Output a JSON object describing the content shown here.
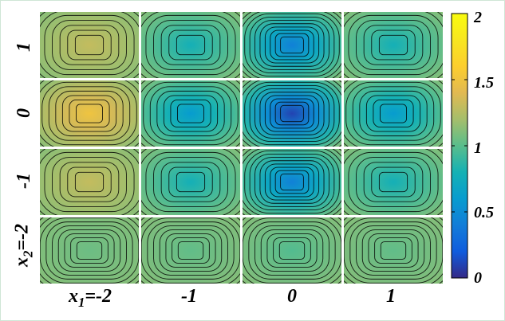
{
  "chart_data": {
    "type": "heatmap",
    "grid_columns": [
      "-2",
      "-1",
      "0",
      "1"
    ],
    "grid_rows_top_to_bottom": [
      "1",
      "0",
      "-1",
      "-2"
    ],
    "axis_label_x": {
      "variable": "x",
      "subscript": "1",
      "first_tick": "=-2",
      "ticks": [
        "-1",
        "0",
        "1"
      ]
    },
    "axis_label_y": {
      "variable": "x",
      "subscript": "2",
      "first_tick": "=-2",
      "ticks": [
        "-1",
        "0",
        "1"
      ]
    },
    "colorbar": {
      "min": 0,
      "max": 2,
      "ticks": [
        "0",
        "0.5",
        "1",
        "1.5",
        "2"
      ],
      "colormap": "parula"
    },
    "panel_center_values": [
      [
        1.3,
        0.78,
        0.42,
        0.78
      ],
      [
        1.5,
        0.6,
        0.1,
        0.6
      ],
      [
        1.3,
        0.78,
        0.42,
        0.78
      ],
      [
        1.05,
        1.02,
        0.98,
        1.02
      ]
    ],
    "panel_edge_value": 1.12,
    "contour_count_per_panel": [
      [
        8,
        8,
        12,
        8
      ],
      [
        9,
        9,
        12,
        9
      ],
      [
        8,
        8,
        12,
        8
      ],
      [
        10,
        10,
        10,
        10
      ]
    ],
    "grid": false
  }
}
